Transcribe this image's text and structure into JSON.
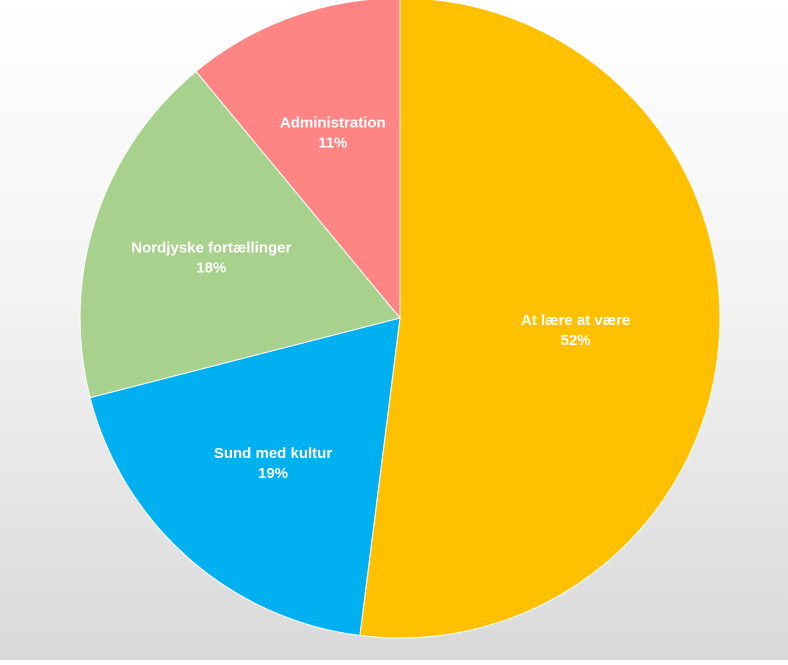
{
  "chart_data": {
    "type": "pie",
    "title": "",
    "legend": "none",
    "slices": [
      {
        "label": "At lære at være",
        "value": 52,
        "percent_label": "52%",
        "color": "#FFC000"
      },
      {
        "label": "Sund med kultur",
        "value": 19,
        "percent_label": "19%",
        "color": "#00B0F0"
      },
      {
        "label": "Nordjyske fortællinger",
        "value": 18,
        "percent_label": "18%",
        "color": "#A9D18E"
      },
      {
        "label": "Administration",
        "value": 11,
        "percent_label": "11%",
        "color": "#FF8585"
      }
    ]
  }
}
